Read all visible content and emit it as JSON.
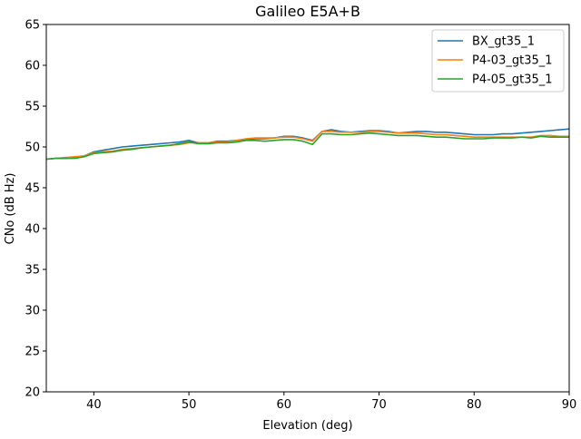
{
  "chart_data": {
    "type": "line",
    "title": "Galileo E5A+B",
    "xlabel": "Elevation (deg)",
    "ylabel": "CNo (dB Hz)",
    "xlim": [
      35,
      90
    ],
    "ylim": [
      20,
      65
    ],
    "xticks": [
      40,
      50,
      60,
      70,
      80,
      90
    ],
    "yticks": [
      20,
      25,
      30,
      35,
      40,
      45,
      50,
      55,
      60,
      65
    ],
    "grid": false,
    "legend": "top-right",
    "x": [
      35,
      36,
      37,
      38,
      39,
      40,
      41,
      42,
      43,
      44,
      45,
      46,
      47,
      48,
      49,
      50,
      51,
      52,
      53,
      54,
      55,
      56,
      57,
      58,
      59,
      60,
      61,
      62,
      63,
      64,
      65,
      66,
      67,
      68,
      69,
      70,
      71,
      72,
      73,
      74,
      75,
      76,
      77,
      78,
      79,
      80,
      81,
      82,
      83,
      84,
      85,
      86,
      87,
      88,
      89,
      90
    ],
    "series": [
      {
        "name": "BX_gt35_1",
        "color": "#1f77b4",
        "values": [
          48.5,
          48.6,
          48.6,
          48.7,
          48.9,
          49.4,
          49.6,
          49.8,
          50.0,
          50.1,
          50.2,
          50.3,
          50.4,
          50.5,
          50.6,
          50.8,
          50.5,
          50.5,
          50.7,
          50.7,
          50.8,
          50.9,
          51.0,
          51.0,
          51.1,
          51.3,
          51.3,
          51.1,
          50.8,
          51.9,
          52.1,
          51.9,
          51.8,
          51.9,
          52.0,
          52.0,
          51.9,
          51.7,
          51.8,
          51.9,
          51.9,
          51.8,
          51.8,
          51.7,
          51.6,
          51.5,
          51.5,
          51.5,
          51.6,
          51.6,
          51.7,
          51.8,
          51.9,
          52.0,
          52.1,
          52.2
        ]
      },
      {
        "name": "P4-03_gt35_1",
        "color": "#ff7f0e",
        "values": [
          48.5,
          48.6,
          48.7,
          48.8,
          48.9,
          49.3,
          49.4,
          49.5,
          49.7,
          49.8,
          49.9,
          50.0,
          50.1,
          50.2,
          50.3,
          50.5,
          50.5,
          50.5,
          50.6,
          50.6,
          50.8,
          51.0,
          51.1,
          51.1,
          51.1,
          51.2,
          51.2,
          51.0,
          50.7,
          51.9,
          51.9,
          51.8,
          51.8,
          51.8,
          51.9,
          51.9,
          51.8,
          51.7,
          51.7,
          51.7,
          51.6,
          51.5,
          51.5,
          51.4,
          51.3,
          51.2,
          51.2,
          51.2,
          51.2,
          51.2,
          51.2,
          51.2,
          51.4,
          51.4,
          51.3,
          51.3
        ]
      },
      {
        "name": "P4-05_gt35_1",
        "color": "#2ca02c",
        "values": [
          48.5,
          48.6,
          48.6,
          48.6,
          48.8,
          49.2,
          49.3,
          49.4,
          49.6,
          49.7,
          49.9,
          50.0,
          50.1,
          50.2,
          50.4,
          50.6,
          50.4,
          50.4,
          50.5,
          50.5,
          50.6,
          50.8,
          50.8,
          50.7,
          50.8,
          50.9,
          50.9,
          50.7,
          50.3,
          51.6,
          51.6,
          51.5,
          51.5,
          51.6,
          51.7,
          51.6,
          51.5,
          51.4,
          51.4,
          51.4,
          51.3,
          51.2,
          51.2,
          51.1,
          51.0,
          51.0,
          51.0,
          51.1,
          51.1,
          51.1,
          51.2,
          51.1,
          51.3,
          51.2,
          51.2,
          51.2
        ]
      }
    ]
  }
}
